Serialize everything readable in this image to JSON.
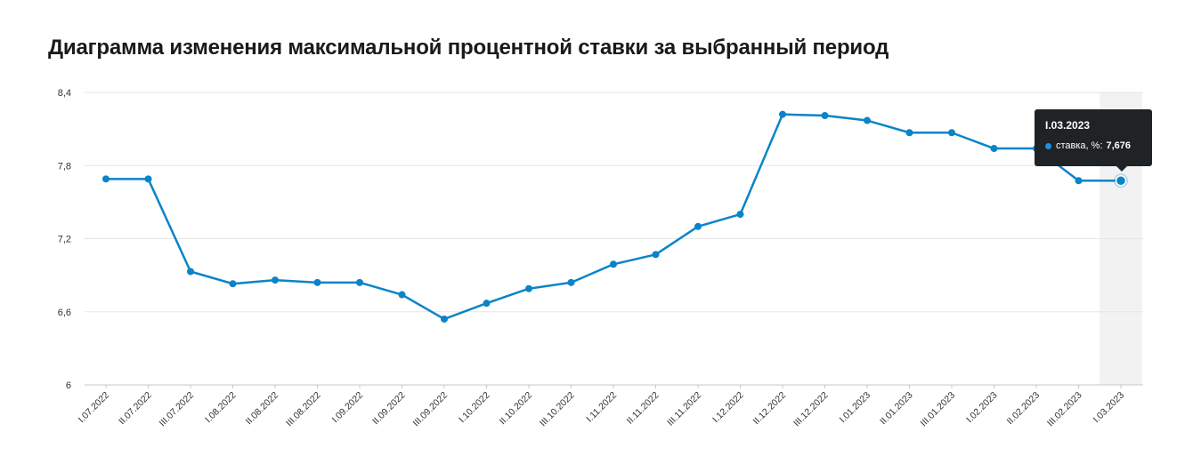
{
  "page": {
    "title": "Диаграмма изменения максимальной процентной ставки за выбранный период"
  },
  "tooltip": {
    "title": "I.03.2023",
    "series_label": "ставка, %:",
    "value": "7,676"
  },
  "colors": {
    "line": "#0a84c8",
    "highlight_band": "#f2f2f2",
    "grid": "#e6e6e6",
    "tooltip_bg": "#202326"
  },
  "chart_data": {
    "type": "line",
    "title": "Диаграмма изменения максимальной процентной ставки за выбранный период",
    "xlabel": "",
    "ylabel": "",
    "ylim": [
      6,
      8.4
    ],
    "yticks": [
      6,
      6.6,
      7.2,
      7.8,
      8.4
    ],
    "ytick_labels": [
      "6",
      "6,6",
      "7,2",
      "7,8",
      "8,4"
    ],
    "grid": true,
    "highlighted_category": "I.03.2023",
    "categories": [
      "I.07.2022",
      "II.07.2022",
      "III.07.2022",
      "I.08.2022",
      "II.08.2022",
      "III.08.2022",
      "I.09.2022",
      "II.09.2022",
      "III.09.2022",
      "I.10.2022",
      "II.10.2022",
      "III.10.2022",
      "I.11.2022",
      "II.11.2022",
      "III.11.2022",
      "I.12.2022",
      "II.12.2022",
      "III.12.2022",
      "I.01.2023",
      "II.01.2023",
      "III.01.2023",
      "I.02.2023",
      "II.02.2023",
      "III.02.2023",
      "I.03.2023"
    ],
    "series": [
      {
        "name": "ставка, %",
        "values": [
          7.69,
          7.69,
          6.93,
          6.83,
          6.86,
          6.84,
          6.84,
          6.74,
          6.54,
          6.67,
          6.79,
          6.84,
          6.99,
          7.07,
          7.3,
          7.4,
          8.22,
          8.21,
          8.17,
          8.07,
          8.07,
          7.94,
          7.94,
          7.676,
          7.676
        ]
      }
    ]
  }
}
